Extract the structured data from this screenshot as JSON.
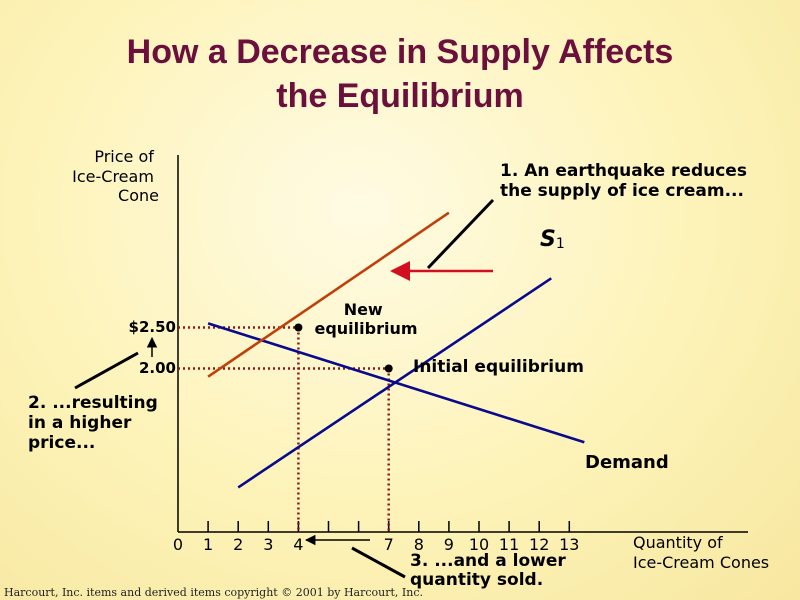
{
  "chart_data": {
    "type": "line",
    "title_line1": "How a Decrease in Supply Affects",
    "title_line2": "the Equilibrium",
    "ylabel_lines": [
      "Price of",
      "Ice-Cream",
      "Cone"
    ],
    "xlabel_lines": [
      "Quantity of",
      "Ice-Cream Cones"
    ],
    "x_ticks": [
      0,
      1,
      2,
      3,
      4,
      5,
      6,
      7,
      8,
      9,
      10,
      11,
      12,
      13
    ],
    "x_tick_labels": [
      "0",
      "1",
      "2",
      "3",
      "4",
      "",
      "",
      "7",
      "8",
      "9",
      "10",
      "11",
      "12",
      "13"
    ],
    "y_tick_labels": [
      "$2.50",
      "2.00"
    ],
    "y_tick_values": [
      2.5,
      2.0
    ],
    "series": [
      {
        "name": "Demand",
        "color": "#0a0a8c",
        "x": [
          1,
          13.5
        ],
        "y": [
          2.55,
          1.1
        ]
      },
      {
        "name": "S1",
        "label_main": "S",
        "label_sub": "1",
        "color": "#0a0a8c",
        "x": [
          2,
          12.4
        ],
        "y": [
          0.55,
          3.1
        ]
      },
      {
        "name": "",
        "color": "#c0400a",
        "x": [
          1,
          9
        ],
        "y": [
          1.9,
          3.9
        ]
      }
    ],
    "equilibria": [
      {
        "name": "Initial equilibrium",
        "label": "Initial equilibrium",
        "x": 7,
        "y": 2.0
      },
      {
        "name": "New equilibrium",
        "label_lines": [
          "New",
          "equilibrium"
        ],
        "x": 4,
        "y": 2.5
      }
    ],
    "annotations": {
      "earthquake_lines": [
        "1. An earthquake reduces",
        "the supply of ice cream..."
      ],
      "price_lines": [
        "2. ...resulting",
        "in a higher",
        "price..."
      ],
      "quantity_lines": [
        "3. ...and a lower",
        "quantity sold."
      ]
    },
    "colors": {
      "title": "#6b0f3c",
      "dotted": "#8b1a1a",
      "arrow": "#d01020",
      "curve": "#0a0a8c",
      "new_supply": "#c0400a"
    }
  },
  "copyright": "Harcourt, Inc. items and derived items copyright © 2001  by Harcourt, Inc."
}
